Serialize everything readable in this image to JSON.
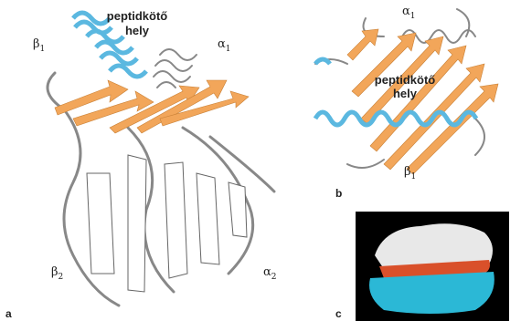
{
  "panels": [
    {
      "letter": "a",
      "site": [
        "peptidkötő",
        "hely"
      ],
      "labels": [
        {
          "symbol": "β",
          "sub": "1"
        },
        {
          "symbol": "α",
          "sub": "1"
        },
        {
          "symbol": "β",
          "sub": "2"
        },
        {
          "symbol": "α",
          "sub": "2"
        }
      ]
    },
    {
      "letter": "b",
      "site": [
        "peptidkötő",
        "hely"
      ],
      "labels": [
        {
          "symbol": "α",
          "sub": "1"
        },
        {
          "symbol": "β",
          "sub": "1"
        }
      ]
    },
    {
      "letter": "c"
    }
  ]
}
